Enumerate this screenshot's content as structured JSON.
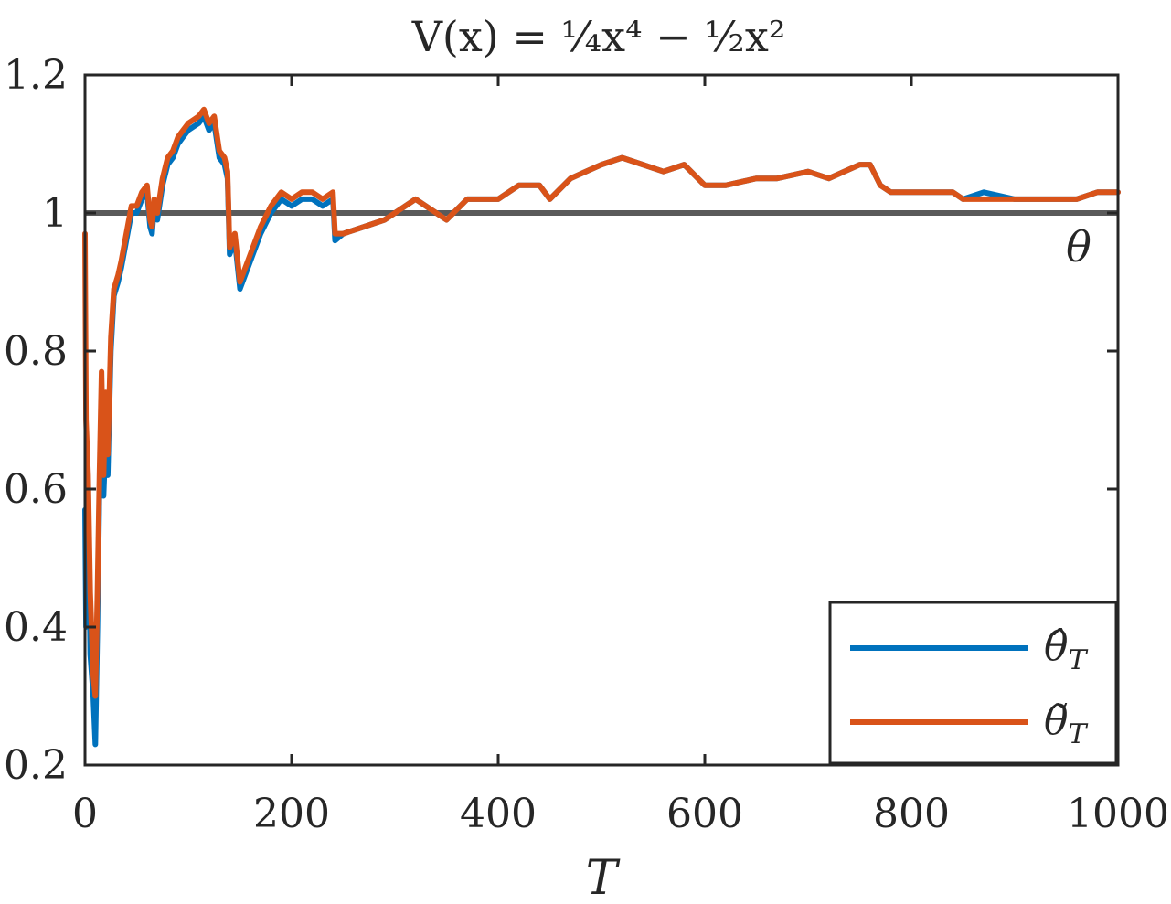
{
  "chart_data": {
    "type": "line",
    "title": "V(x) = ¼x⁴ − ½x²",
    "xlabel": "T",
    "ylabel": "",
    "xlim": [
      0,
      1000
    ],
    "ylim": [
      0.2,
      1.2
    ],
    "x_ticks": [
      0,
      200,
      400,
      600,
      800,
      1000
    ],
    "x_tick_labels": [
      "0",
      "200",
      "400",
      "600",
      "800",
      "1000"
    ],
    "y_ticks": [
      0.2,
      0.4,
      0.6,
      0.8,
      1.0,
      1.2
    ],
    "y_tick_labels": [
      "0.2",
      "0.4",
      "0.6",
      "0.8",
      "1",
      "1.2"
    ],
    "grid": false,
    "legend_position": "bottom-right",
    "reference_line": {
      "y": 1.0,
      "label": "θ",
      "color": "#5a5a5a"
    },
    "series": [
      {
        "name": "θ̂_T",
        "color": "#0072BD",
        "x": [
          0,
          1,
          3,
          5,
          8,
          10,
          12,
          14,
          16,
          18,
          20,
          22,
          25,
          28,
          32,
          35,
          40,
          45,
          50,
          55,
          60,
          63,
          65,
          67,
          70,
          75,
          80,
          85,
          90,
          95,
          100,
          110,
          115,
          120,
          125,
          130,
          135,
          138,
          140,
          145,
          150,
          160,
          170,
          180,
          190,
          200,
          210,
          220,
          230,
          240,
          242,
          250,
          270,
          290,
          300,
          320,
          340,
          350,
          370,
          400,
          420,
          440,
          450,
          470,
          500,
          520,
          540,
          560,
          580,
          600,
          620,
          650,
          670,
          700,
          720,
          750,
          760,
          770,
          780,
          800,
          820,
          840,
          850,
          870,
          900,
          920,
          940,
          960,
          980,
          1000
        ],
        "y": [
          0.57,
          0.4,
          0.61,
          0.36,
          0.3,
          0.23,
          0.4,
          0.6,
          0.65,
          0.59,
          0.67,
          0.62,
          0.8,
          0.88,
          0.9,
          0.92,
          0.96,
          1.0,
          1.0,
          1.02,
          1.03,
          0.98,
          0.97,
          1.01,
          0.99,
          1.04,
          1.07,
          1.08,
          1.1,
          1.11,
          1.12,
          1.13,
          1.14,
          1.12,
          1.13,
          1.08,
          1.07,
          1.05,
          0.94,
          0.96,
          0.89,
          0.93,
          0.97,
          1.0,
          1.02,
          1.01,
          1.02,
          1.02,
          1.01,
          1.02,
          0.96,
          0.97,
          0.98,
          0.99,
          1.0,
          1.02,
          1.0,
          0.99,
          1.02,
          1.02,
          1.04,
          1.04,
          1.02,
          1.05,
          1.07,
          1.08,
          1.07,
          1.06,
          1.07,
          1.04,
          1.04,
          1.05,
          1.05,
          1.06,
          1.05,
          1.07,
          1.07,
          1.04,
          1.03,
          1.03,
          1.03,
          1.03,
          1.02,
          1.03,
          1.02,
          1.02,
          1.02,
          1.02,
          1.03,
          1.03
        ]
      },
      {
        "name": "θ̃_T",
        "color": "#D95319",
        "x": [
          0,
          1,
          3,
          5,
          8,
          10,
          12,
          14,
          16,
          18,
          20,
          22,
          25,
          28,
          32,
          35,
          40,
          45,
          50,
          55,
          60,
          63,
          65,
          67,
          70,
          75,
          80,
          85,
          90,
          95,
          100,
          110,
          115,
          120,
          125,
          130,
          135,
          138,
          140,
          145,
          150,
          160,
          170,
          180,
          190,
          200,
          210,
          220,
          230,
          240,
          242,
          250,
          270,
          290,
          300,
          320,
          340,
          350,
          370,
          400,
          420,
          440,
          450,
          470,
          500,
          520,
          540,
          560,
          580,
          600,
          620,
          650,
          670,
          700,
          720,
          750,
          760,
          770,
          780,
          800,
          820,
          840,
          850,
          870,
          900,
          920,
          940,
          960,
          980,
          1000
        ],
        "y": [
          0.97,
          0.7,
          0.62,
          0.45,
          0.33,
          0.3,
          0.45,
          0.62,
          0.77,
          0.62,
          0.74,
          0.65,
          0.82,
          0.89,
          0.91,
          0.93,
          0.97,
          1.01,
          1.01,
          1.03,
          1.04,
          0.99,
          0.98,
          1.02,
          1.0,
          1.05,
          1.08,
          1.09,
          1.11,
          1.12,
          1.13,
          1.14,
          1.15,
          1.13,
          1.14,
          1.09,
          1.08,
          1.06,
          0.95,
          0.97,
          0.9,
          0.94,
          0.98,
          1.01,
          1.03,
          1.02,
          1.03,
          1.03,
          1.02,
          1.03,
          0.97,
          0.97,
          0.98,
          0.99,
          1.0,
          1.02,
          1.0,
          0.99,
          1.02,
          1.02,
          1.04,
          1.04,
          1.02,
          1.05,
          1.07,
          1.08,
          1.07,
          1.06,
          1.07,
          1.04,
          1.04,
          1.05,
          1.05,
          1.06,
          1.05,
          1.07,
          1.07,
          1.04,
          1.03,
          1.03,
          1.03,
          1.03,
          1.02,
          1.02,
          1.02,
          1.02,
          1.02,
          1.02,
          1.03,
          1.03
        ]
      }
    ]
  },
  "annotations": {
    "reference_label": "θ"
  },
  "legend": {
    "items": [
      {
        "label": "θ̂",
        "subscript": "T",
        "color": "#0072BD"
      },
      {
        "label": "θ̃",
        "subscript": "T",
        "color": "#D95319"
      }
    ]
  }
}
